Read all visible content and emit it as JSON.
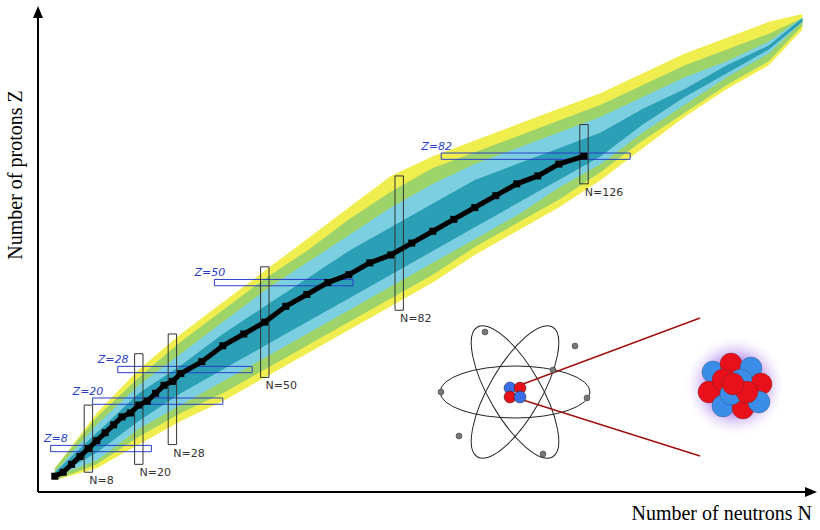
{
  "chart_data": {
    "type": "nuclide",
    "x_label": "Number of neutrons N",
    "y_label": "Number of protons Z",
    "xlim": [
      -4,
      181
    ],
    "ylim": [
      -3,
      119
    ],
    "tick_labels": false,
    "x": [
      0,
      10,
      20,
      30,
      40,
      50,
      60,
      70,
      80,
      90,
      100,
      110,
      120,
      130,
      140,
      150,
      160,
      170,
      178
    ],
    "bands": [
      {
        "color": "#f0ee4e",
        "lower": [
          0,
          3,
          9,
          15,
          20,
          26,
          32,
          38,
          44,
          50,
          57,
          63,
          69,
          76,
          84,
          92,
          99,
          105,
          114
        ],
        "upper": [
          3,
          17,
          28,
          37,
          45,
          53,
          61,
          69,
          77,
          82,
          86,
          90,
          94,
          98,
          103,
          108,
          112,
          116,
          118
        ]
      },
      {
        "color": "#9ed36a",
        "lower": [
          0,
          4,
          11,
          17,
          22,
          28,
          34,
          40,
          46,
          52,
          59,
          65,
          71,
          78,
          86,
          93,
          100,
          106,
          115
        ],
        "upper": [
          3,
          16,
          26,
          35,
          43,
          51,
          58,
          66,
          73,
          79,
          83,
          87,
          91,
          95,
          100,
          105,
          109,
          113,
          117
        ]
      },
      {
        "color": "#7ccfe0",
        "lower": [
          1,
          5,
          13,
          19,
          25,
          31,
          37,
          43,
          49,
          55,
          61,
          67,
          74,
          80,
          88,
          95,
          102,
          108,
          116
        ],
        "upper": [
          2,
          14,
          24,
          32,
          40,
          48,
          55,
          62,
          69,
          75,
          80,
          84,
          88,
          92,
          97,
          102,
          106,
          111,
          117
        ]
      },
      {
        "color": "#2b9fb5",
        "lower": [
          1,
          7,
          15,
          22,
          28,
          34,
          40,
          46,
          52,
          58,
          64,
          70,
          76,
          82,
          90,
          97,
          103,
          109,
          116
        ],
        "upper": [
          2,
          12,
          22,
          29,
          37,
          44,
          51,
          58,
          64,
          70,
          76,
          80,
          84,
          88,
          94,
          99,
          105,
          110,
          117
        ]
      }
    ],
    "stable": {
      "color": "#000000",
      "marker": "square",
      "line_style": "solid",
      "x": [
        0,
        2,
        4,
        6,
        8,
        10,
        12,
        14,
        16,
        18,
        20,
        22,
        24,
        26,
        28,
        30,
        35,
        40,
        45,
        50,
        55,
        60,
        65,
        70,
        75,
        80,
        85,
        90,
        95,
        100,
        105,
        110,
        115,
        120,
        126
      ],
      "y": [
        1,
        2,
        4,
        6,
        8,
        10,
        12,
        14,
        16,
        17,
        19,
        20,
        22,
        24,
        25,
        27,
        30,
        34,
        37,
        40,
        44,
        47,
        50,
        52,
        55,
        57,
        60,
        63,
        66,
        69,
        72,
        75,
        77,
        80,
        82
      ]
    },
    "magic_n": {
      "color": "#333333",
      "lines": [
        {
          "value": 8,
          "label": "N=8",
          "zrange": [
            2,
            19
          ]
        },
        {
          "value": 20,
          "label": "N=20",
          "zrange": [
            4,
            32
          ]
        },
        {
          "value": 28,
          "label": "N=28",
          "zrange": [
            9,
            37
          ]
        },
        {
          "value": 50,
          "label": "N=50",
          "zrange": [
            26,
            54
          ]
        },
        {
          "value": 82,
          "label": "N=82",
          "zrange": [
            43,
            77
          ]
        },
        {
          "value": 126,
          "label": "N=126",
          "zrange": [
            75,
            90
          ]
        }
      ]
    },
    "magic_z": {
      "color": "#2a3fc8",
      "lines": [
        {
          "value": 8,
          "label": "Z=8",
          "nrange": [
            -1,
            23
          ]
        },
        {
          "value": 20,
          "label": "Z=20",
          "nrange": [
            9,
            40
          ]
        },
        {
          "value": 28,
          "label": "Z=28",
          "nrange": [
            15,
            47
          ]
        },
        {
          "value": 50,
          "label": "Z=50",
          "nrange": [
            38,
            71
          ]
        },
        {
          "value": 82,
          "label": "Z=82",
          "nrange": [
            92,
            137
          ]
        }
      ]
    }
  }
}
